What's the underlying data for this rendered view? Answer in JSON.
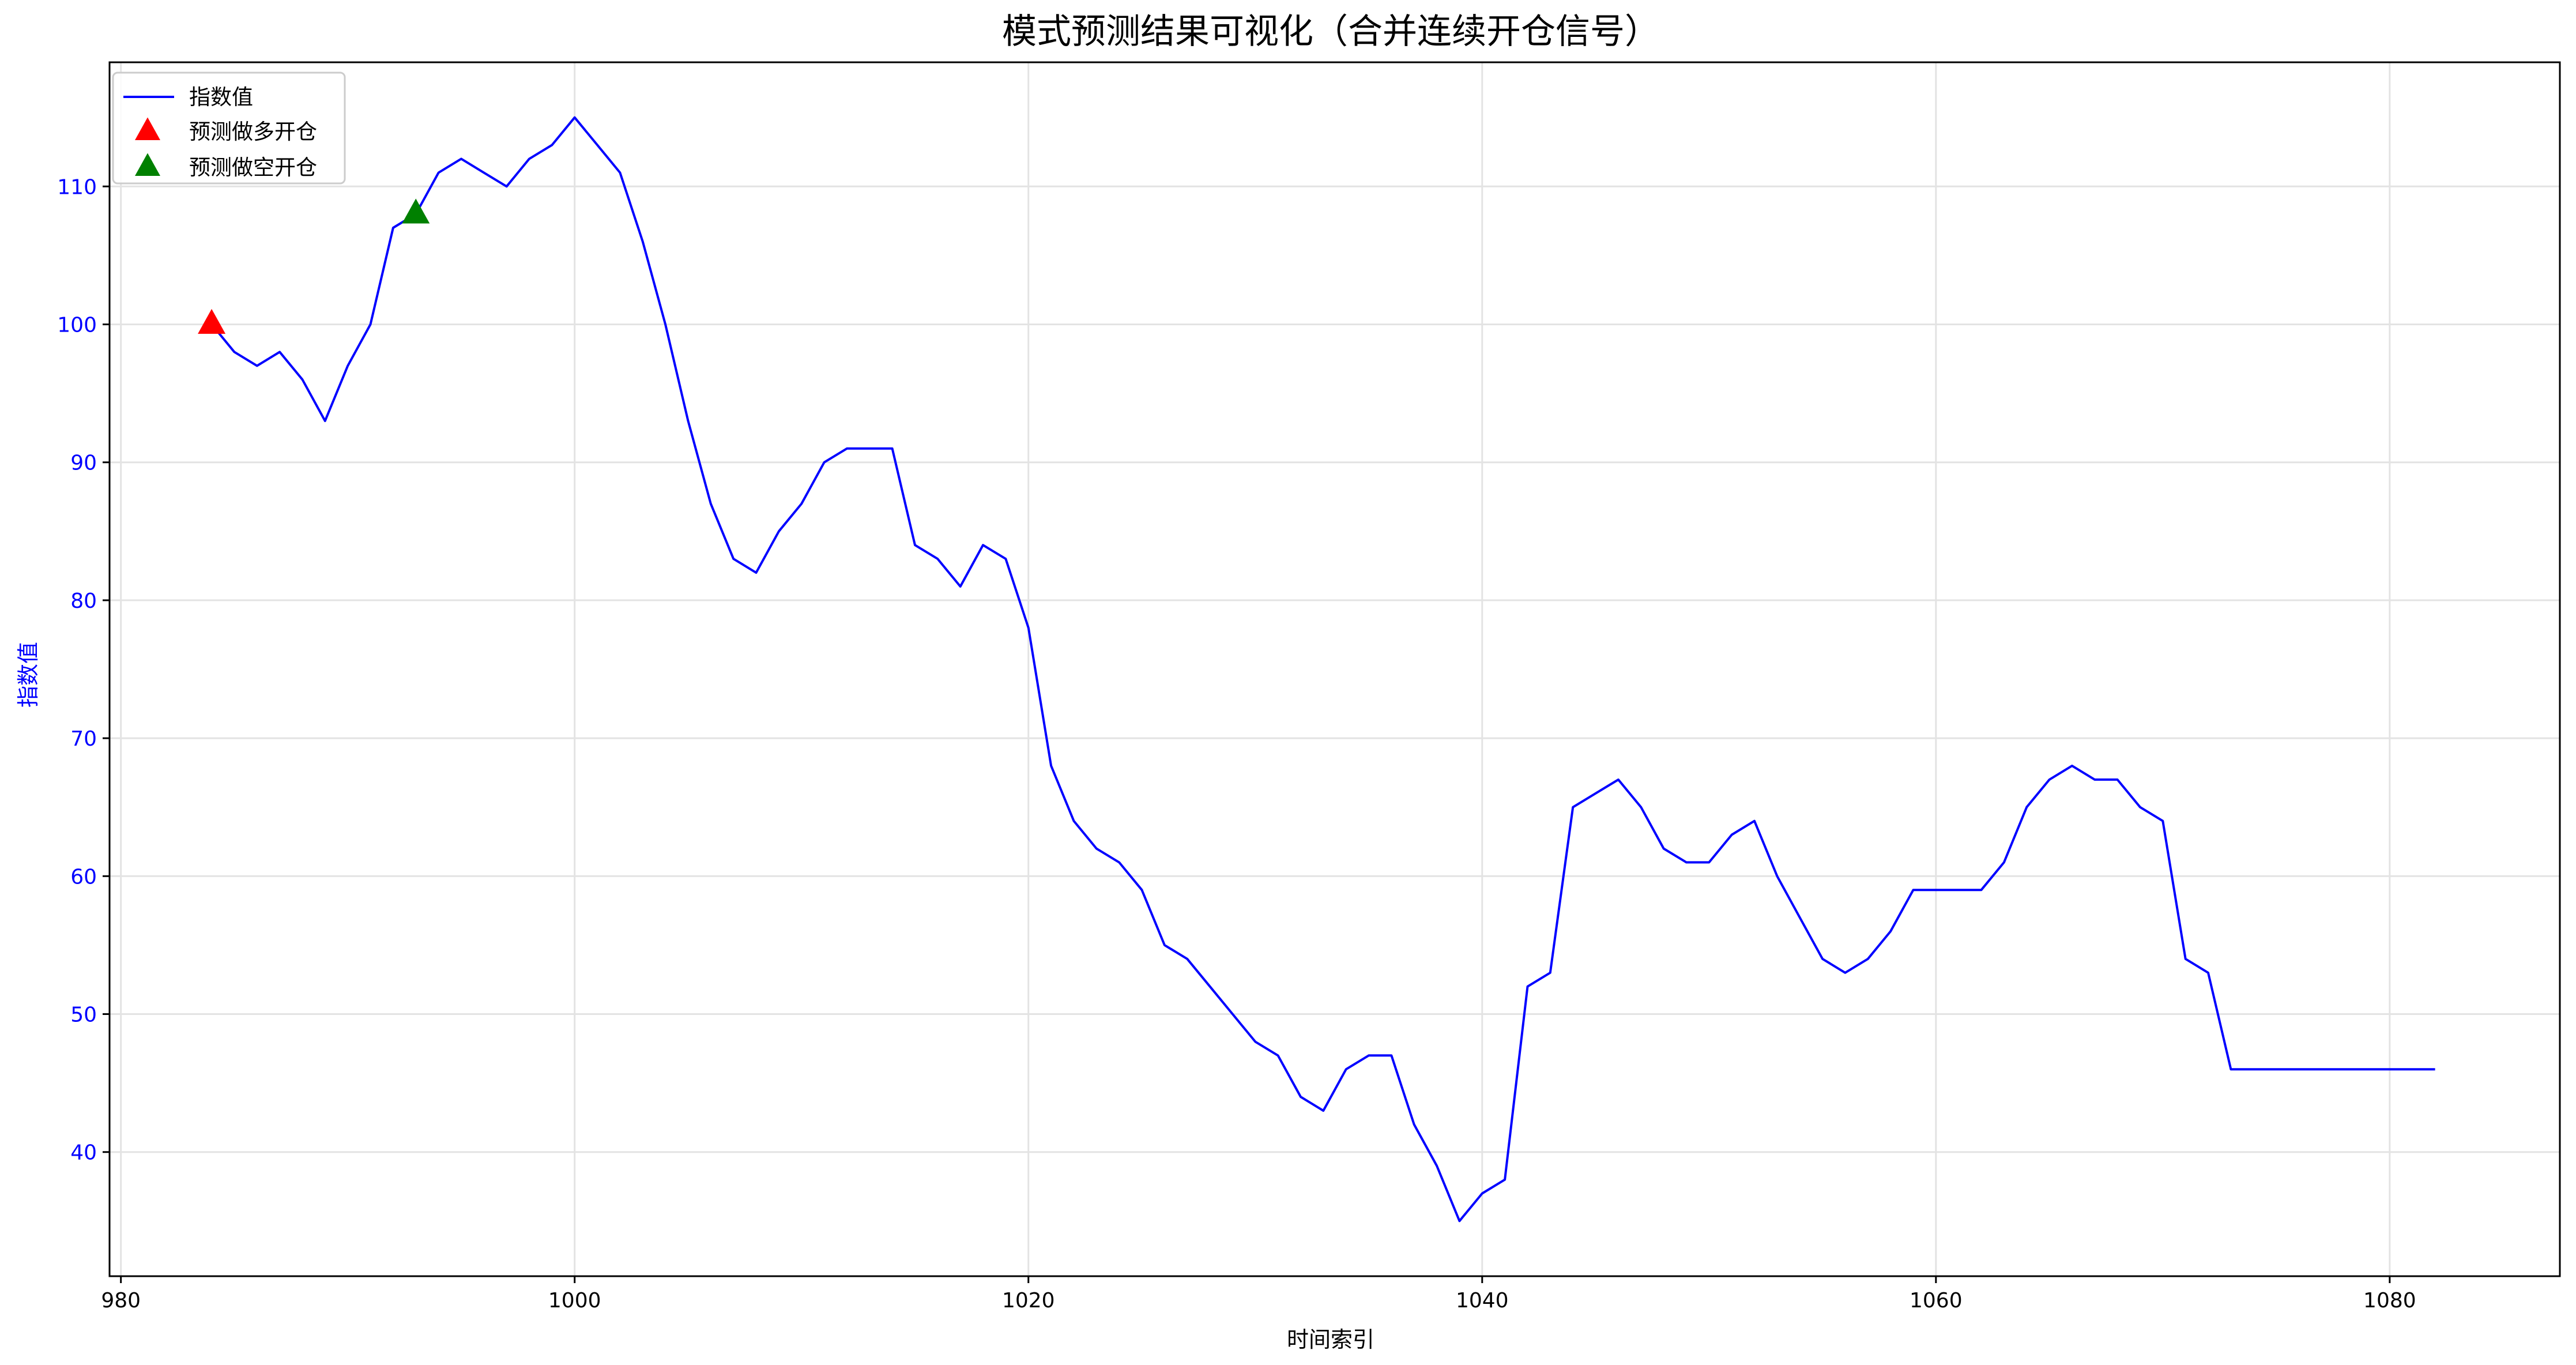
{
  "chart_data": {
    "type": "line",
    "title": "模式预测结果可视化（合并连续开仓信号）",
    "xlabel": "时间索引",
    "ylabel": "指数值",
    "xlim": [
      979.5,
      1087.5
    ],
    "ylim": [
      31,
      119
    ],
    "x_ticks": [
      980,
      1000,
      1020,
      1040,
      1060,
      1080
    ],
    "y_ticks": [
      40,
      50,
      60,
      70,
      80,
      90,
      100,
      110
    ],
    "grid": true,
    "legend_position": "top-left",
    "colors": {
      "line": "#0000ff",
      "long": "#ff0000",
      "short": "#008000",
      "axis_text": "#0000ff"
    },
    "series": [
      {
        "name": "指数值",
        "type": "line",
        "x": [
          984,
          985,
          986,
          987,
          988,
          989,
          990,
          991,
          992,
          993,
          994,
          995,
          996,
          997,
          998,
          999,
          1000,
          1001,
          1002,
          1003,
          1004,
          1005,
          1006,
          1007,
          1008,
          1009,
          1010,
          1011,
          1012,
          1013,
          1014,
          1015,
          1016,
          1017,
          1018,
          1019,
          1020,
          1021,
          1022,
          1023,
          1024,
          1025,
          1026,
          1027,
          1028,
          1029,
          1030,
          1031,
          1032,
          1033,
          1034,
          1035,
          1036,
          1037,
          1038,
          1039,
          1040,
          1041,
          1042,
          1043,
          1044,
          1045,
          1046,
          1047,
          1048,
          1049,
          1050,
          1051,
          1052,
          1053,
          1054,
          1055,
          1056,
          1057,
          1058,
          1059,
          1060,
          1061,
          1062,
          1063,
          1064,
          1065,
          1066,
          1067,
          1068,
          1069,
          1070,
          1071,
          1072,
          1073,
          1074,
          1075,
          1076,
          1077,
          1078,
          1079,
          1080,
          1081,
          1082
        ],
        "y": [
          100,
          98,
          97,
          98,
          96,
          93,
          97,
          100,
          107,
          108,
          111,
          112,
          111,
          110,
          112,
          113,
          115,
          113,
          111,
          106,
          100,
          93,
          87,
          83,
          82,
          85,
          87,
          90,
          91,
          91,
          91,
          84,
          83,
          81,
          84,
          83,
          78,
          68,
          64,
          62,
          61,
          59,
          55,
          54,
          52,
          50,
          48,
          47,
          44,
          43,
          46,
          47,
          47,
          42,
          39,
          35,
          37,
          38,
          52,
          53,
          65,
          66,
          67,
          65,
          62,
          61,
          61,
          63,
          64,
          60,
          57,
          54,
          53,
          54,
          56,
          59,
          59,
          59,
          59,
          61,
          65,
          67,
          68,
          67,
          67,
          65,
          64,
          54,
          53,
          46,
          46,
          46,
          46,
          46,
          46,
          46,
          46,
          46,
          46
        ]
      },
      {
        "name": "预测做多开仓",
        "type": "scatter",
        "marker": "triangle-up",
        "x": [
          984
        ],
        "y": [
          100
        ]
      },
      {
        "name": "预测做空开仓",
        "type": "scatter",
        "marker": "triangle-up",
        "x": [
          993
        ],
        "y": [
          108
        ]
      }
    ]
  }
}
